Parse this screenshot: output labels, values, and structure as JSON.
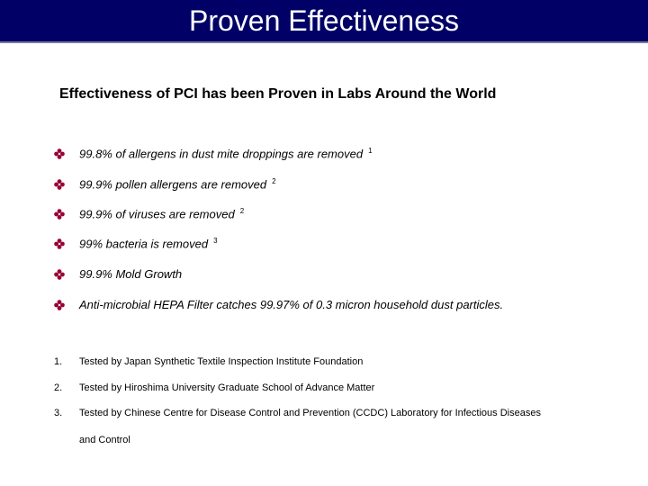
{
  "slide": {
    "title": "Proven Effectiveness",
    "subtitle": "Effectiveness of PCI has been Proven in Labs Around the World"
  },
  "bullets": [
    {
      "text": "99.8% of allergens in dust mite droppings are removed",
      "ref": "1"
    },
    {
      "text": "99.9% pollen allergens are removed",
      "ref": "2"
    },
    {
      "text": "99.9% of viruses are removed",
      "ref": "2"
    },
    {
      "text": "99% bacteria is removed",
      "ref": "3"
    },
    {
      "text": "99.9% Mold Growth",
      "ref": ""
    },
    {
      "text": "Anti-microbial HEPA Filter catches 99.97% of 0.3 micron household dust particles.",
      "ref": ""
    }
  ],
  "footnotes": [
    {
      "num": "1.",
      "text": "Tested by Japan Synthetic Textile Inspection Institute Foundation"
    },
    {
      "num": "2.",
      "text": "Tested by Hiroshima University Graduate School of Advance Matter"
    },
    {
      "num": "3.",
      "text": "Tested by Chinese Centre for Disease Control and Prevention (CCDC) Laboratory for Infectious Diseases"
    }
  ],
  "footnote_continuation": "and Control",
  "colors": {
    "title_bar": "#000066",
    "bullet": "#990033"
  },
  "icons": {
    "bullet": "diamond-bullet-icon"
  }
}
